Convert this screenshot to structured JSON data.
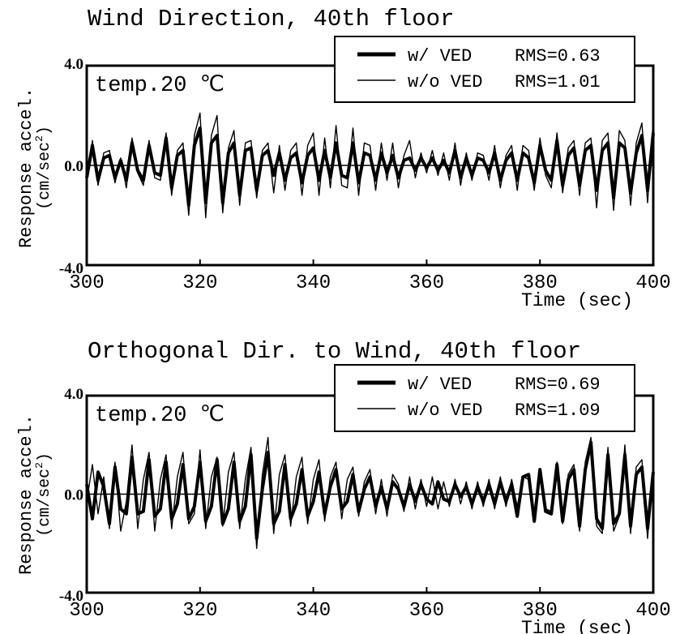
{
  "chart_data": [
    {
      "type": "line",
      "title": "Wind Direction, 40th floor",
      "annotation": "temp.20 ℃",
      "ylabel_line1": "Response accel.",
      "ylabel_line2": "(cm/sec",
      "ylabel_sup": "2",
      "ylabel_close": ")",
      "xlabel": "Time (sec)",
      "xlim": [
        300,
        400
      ],
      "ylim": [
        -4.0,
        4.0
      ],
      "xticks": [
        "300",
        "320",
        "340",
        "360",
        "380",
        "400"
      ],
      "yticks": [
        "4.0",
        "0.0",
        "-4.0"
      ],
      "legend_placement": "top-right",
      "series": [
        {
          "name": "w/  VED",
          "rms_label": "RMS=0.63",
          "line_weight": "thick",
          "x": [
            300,
            301,
            302,
            303,
            304,
            305,
            306,
            307,
            308,
            309,
            310,
            311,
            312,
            313,
            314,
            315,
            316,
            317,
            318,
            319,
            320,
            321,
            322,
            323,
            324,
            325,
            326,
            327,
            328,
            329,
            330,
            331,
            332,
            333,
            334,
            335,
            336,
            337,
            338,
            339,
            340,
            341,
            342,
            343,
            344,
            345,
            346,
            347,
            348,
            349,
            350,
            351,
            352,
            353,
            354,
            355,
            356,
            357,
            358,
            359,
            360,
            361,
            362,
            363,
            364,
            365,
            366,
            367,
            368,
            369,
            370,
            371,
            372,
            373,
            374,
            375,
            376,
            377,
            378,
            379,
            380,
            381,
            382,
            383,
            384,
            385,
            386,
            387,
            388,
            389,
            390,
            391,
            392,
            393,
            394,
            395,
            396,
            397,
            398,
            399,
            400
          ],
          "y": [
            -0.5,
            0.8,
            -0.6,
            0.3,
            0.4,
            -0.5,
            0.2,
            -0.6,
            0.9,
            -0.2,
            -0.6,
            0.8,
            -0.3,
            -0.4,
            1.1,
            -0.9,
            0.4,
            0.6,
            -1.6,
            0.8,
            1.5,
            -1.5,
            0.9,
            1.2,
            -1.5,
            0.5,
            0.9,
            -1.2,
            0.6,
            0.7,
            -1.0,
            0.4,
            0.6,
            -0.4,
            0.5,
            -0.6,
            0.3,
            0.5,
            -0.7,
            0.4,
            0.7,
            -0.6,
            0.6,
            -0.5,
            0.9,
            -0.4,
            -0.5,
            0.9,
            -0.7,
            0.5,
            0.4,
            -0.6,
            0.5,
            -0.3,
            0.4,
            -0.5,
            0.2,
            0.3,
            -0.2,
            0.3,
            -0.1,
            0.3,
            -0.2,
            0.2,
            -0.3,
            0.6,
            -0.5,
            0.3,
            -0.4,
            0.3,
            0.2,
            -0.3,
            0.5,
            -0.6,
            0.2,
            0.5,
            -0.6,
            0.5,
            0.3,
            -0.7,
            0.8,
            -0.2,
            -0.6,
            1.0,
            -0.8,
            0.4,
            0.7,
            -0.8,
            0.6,
            0.8,
            -1.0,
            0.6,
            0.9,
            -1.3,
            0.9,
            0.7,
            -1.1,
            0.5,
            1.2,
            -1.0,
            1.3
          ]
        },
        {
          "name": "w/o VED",
          "rms_label": "RMS=1.01",
          "line_weight": "thin",
          "x": [
            300,
            301,
            302,
            303,
            304,
            305,
            306,
            307,
            308,
            309,
            310,
            311,
            312,
            313,
            314,
            315,
            316,
            317,
            318,
            319,
            320,
            321,
            322,
            323,
            324,
            325,
            326,
            327,
            328,
            329,
            330,
            331,
            332,
            333,
            334,
            335,
            336,
            337,
            338,
            339,
            340,
            341,
            342,
            343,
            344,
            345,
            346,
            347,
            348,
            349,
            350,
            351,
            352,
            353,
            354,
            355,
            356,
            357,
            358,
            359,
            360,
            361,
            362,
            363,
            364,
            365,
            366,
            367,
            368,
            369,
            370,
            371,
            372,
            373,
            374,
            375,
            376,
            377,
            378,
            379,
            380,
            381,
            382,
            383,
            384,
            385,
            386,
            387,
            388,
            389,
            390,
            391,
            392,
            393,
            394,
            395,
            396,
            397,
            398,
            399,
            400
          ],
          "y": [
            -0.7,
            1.0,
            -0.8,
            0.5,
            0.6,
            -0.7,
            0.3,
            -0.9,
            1.1,
            -0.3,
            -0.8,
            1.0,
            -0.5,
            -0.6,
            1.3,
            -1.2,
            0.6,
            0.9,
            -2.0,
            1.2,
            2.1,
            -2.1,
            1.2,
            2.0,
            -1.9,
            0.7,
            1.4,
            -1.6,
            0.9,
            1.0,
            -1.3,
            0.6,
            0.9,
            -1.1,
            0.8,
            -1.0,
            0.6,
            0.9,
            -1.2,
            0.8,
            1.3,
            -1.2,
            1.1,
            -0.9,
            1.6,
            -0.8,
            -0.9,
            1.5,
            -1.2,
            0.9,
            0.8,
            -1.0,
            0.9,
            -0.6,
            0.9,
            -0.9,
            0.4,
            1.0,
            -0.5,
            0.5,
            -0.3,
            0.6,
            -0.4,
            0.5,
            -0.6,
            0.9,
            -0.8,
            0.5,
            -0.6,
            0.5,
            0.4,
            -0.6,
            0.8,
            -0.9,
            0.4,
            0.8,
            -1.0,
            0.8,
            0.6,
            -1.0,
            1.1,
            -0.4,
            -0.9,
            1.3,
            -1.1,
            0.7,
            1.0,
            -1.2,
            0.9,
            1.1,
            -1.7,
            1.0,
            1.3,
            -1.8,
            1.4,
            1.0,
            -1.6,
            0.9,
            1.7,
            -1.5,
            1.8
          ]
        }
      ]
    },
    {
      "type": "line",
      "title": "Orthogonal Dir. to Wind, 40th floor",
      "annotation": "temp.20 ℃",
      "ylabel_line1": "Response accel.",
      "ylabel_line2": "(cm/sec",
      "ylabel_sup": "2",
      "ylabel_close": ")",
      "xlabel": "Time (sec)",
      "xlim": [
        300,
        400
      ],
      "ylim": [
        -4.0,
        4.0
      ],
      "xticks": [
        "300",
        "320",
        "340",
        "360",
        "380",
        "400"
      ],
      "yticks": [
        "4.0",
        "0.0",
        "-4.0"
      ],
      "legend_placement": "top-right",
      "series": [
        {
          "name": "w/  VED",
          "rms_label": "RMS=0.69",
          "line_weight": "thick",
          "x": [
            300,
            301,
            302,
            303,
            304,
            305,
            306,
            307,
            308,
            309,
            310,
            311,
            312,
            313,
            314,
            315,
            316,
            317,
            318,
            319,
            320,
            321,
            322,
            323,
            324,
            325,
            326,
            327,
            328,
            329,
            330,
            331,
            332,
            333,
            334,
            335,
            336,
            337,
            338,
            339,
            340,
            341,
            342,
            343,
            344,
            345,
            346,
            347,
            348,
            349,
            350,
            351,
            352,
            353,
            354,
            355,
            356,
            357,
            358,
            359,
            360,
            361,
            362,
            363,
            364,
            365,
            366,
            367,
            368,
            369,
            370,
            371,
            372,
            373,
            374,
            375,
            376,
            377,
            378,
            379,
            380,
            381,
            382,
            383,
            384,
            385,
            386,
            387,
            388,
            389,
            390,
            391,
            392,
            393,
            394,
            395,
            396,
            397,
            398,
            399,
            400
          ],
          "y": [
            0.4,
            -1.0,
            0.9,
            0.3,
            -1.2,
            1.1,
            -0.6,
            -0.8,
            1.5,
            -0.8,
            -0.7,
            1.4,
            -0.9,
            -0.6,
            1.3,
            -1.0,
            -0.4,
            1.2,
            -1.0,
            -0.5,
            1.3,
            -1.1,
            -0.5,
            1.4,
            -1.2,
            -0.6,
            1.3,
            -1.1,
            -0.5,
            1.6,
            -1.8,
            0.2,
            1.7,
            -1.2,
            -0.7,
            1.2,
            -1.0,
            -0.4,
            1.0,
            -0.9,
            -0.3,
            0.9,
            -0.8,
            0.3,
            1.0,
            -0.6,
            -0.3,
            0.8,
            -0.7,
            0.2,
            0.7,
            -0.5,
            0.3,
            -0.6,
            0.5,
            0.2,
            -0.5,
            0.4,
            -0.3,
            0.4,
            -0.2,
            -0.4,
            0.5,
            -0.2,
            -0.3,
            0.4,
            -0.1,
            0.3,
            -0.4,
            0.3,
            -0.3,
            0.4,
            -0.4,
            0.5,
            -0.3,
            0.4,
            -0.9,
            0.7,
            0.8,
            -1.1,
            1.0,
            -0.7,
            -0.8,
            1.2,
            -1.1,
            0.6,
            1.0,
            -1.3,
            1.0,
            2.1,
            -1.0,
            -1.4,
            1.6,
            -1.2,
            -0.8,
            1.6,
            -1.3,
            0.8,
            1.1,
            -1.4,
            0.9
          ]
        },
        {
          "name": "w/o VED",
          "rms_label": "RMS=1.09",
          "line_weight": "thin",
          "x": [
            300,
            301,
            302,
            303,
            304,
            305,
            306,
            307,
            308,
            309,
            310,
            311,
            312,
            313,
            314,
            315,
            316,
            317,
            318,
            319,
            320,
            321,
            322,
            323,
            324,
            325,
            326,
            327,
            328,
            329,
            330,
            331,
            332,
            333,
            334,
            335,
            336,
            337,
            338,
            339,
            340,
            341,
            342,
            343,
            344,
            345,
            346,
            347,
            348,
            349,
            350,
            351,
            352,
            353,
            354,
            355,
            356,
            357,
            358,
            359,
            360,
            361,
            362,
            363,
            364,
            365,
            366,
            367,
            368,
            369,
            370,
            371,
            372,
            373,
            374,
            375,
            376,
            377,
            378,
            379,
            380,
            381,
            382,
            383,
            384,
            385,
            386,
            387,
            388,
            389,
            390,
            391,
            392,
            393,
            394,
            395,
            396,
            397,
            398,
            399,
            400
          ],
          "y": [
            -0.3,
            1.2,
            -0.8,
            0.7,
            -1.4,
            1.3,
            -1.5,
            -0.3,
            2.0,
            -1.4,
            0.6,
            1.7,
            -1.5,
            0.6,
            1.6,
            -1.4,
            0.7,
            1.7,
            -1.2,
            -0.8,
            1.8,
            -1.4,
            0.7,
            1.5,
            -1.3,
            0.9,
            1.7,
            -1.4,
            0.6,
            1.9,
            -2.2,
            0.8,
            2.3,
            -1.6,
            0.8,
            1.6,
            -1.3,
            0.7,
            1.5,
            -1.2,
            0.6,
            1.4,
            -1.1,
            0.7,
            1.3,
            -1.0,
            0.6,
            1.1,
            -0.9,
            0.5,
            1.0,
            -0.8,
            0.6,
            -0.9,
            0.8,
            0.4,
            -0.7,
            0.7,
            -0.6,
            0.6,
            -0.5,
            0.7,
            -0.6,
            0.5,
            -0.5,
            0.6,
            -0.4,
            0.5,
            -0.6,
            0.5,
            -0.5,
            0.6,
            -0.6,
            0.7,
            -0.5,
            0.6,
            -0.5,
            0.7,
            0.6,
            -0.8,
            0.8,
            -0.6,
            -0.7,
            1.3,
            -1.2,
            0.8,
            1.2,
            -1.5,
            1.3,
            2.3,
            -1.3,
            -1.6,
            1.9,
            -1.5,
            -0.9,
            2.0,
            -1.6,
            1.1,
            1.4,
            -1.8,
            1.2
          ]
        }
      ]
    }
  ]
}
